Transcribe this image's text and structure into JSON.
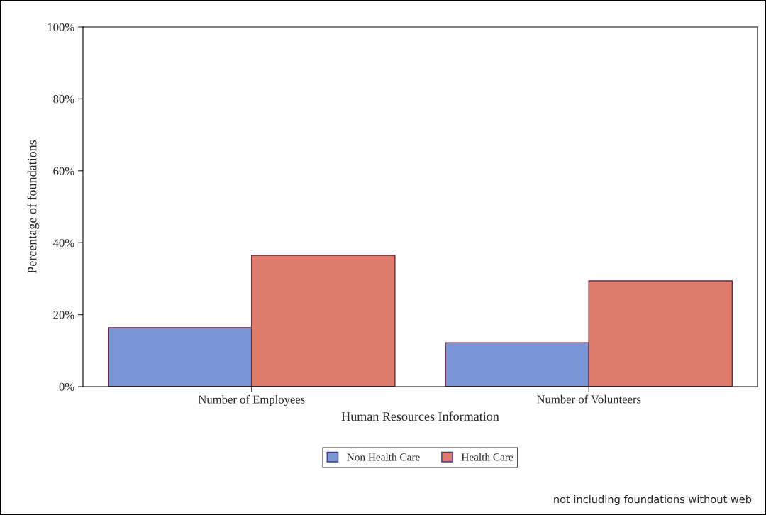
{
  "chart_data": {
    "type": "bar",
    "xlabel": "Human Resources Information",
    "ylabel": "Percentage of foundations",
    "categories": [
      "Number of Employees",
      "Number of Volunteers"
    ],
    "series": [
      {
        "name": "Non Health Care",
        "color": "#7b96d4",
        "values": [
          16.4,
          12.2
        ]
      },
      {
        "name": "Health Care",
        "color": "#df7c6c",
        "values": [
          36.5,
          29.4
        ]
      }
    ],
    "ylim": [
      0,
      100
    ],
    "yticks": [
      {
        "value": 0,
        "label": "0%"
      },
      {
        "value": 20,
        "label": "20%"
      },
      {
        "value": 40,
        "label": "40%"
      },
      {
        "value": 60,
        "label": "60%"
      },
      {
        "value": 80,
        "label": "80%"
      },
      {
        "value": 100,
        "label": "100%"
      }
    ],
    "grid": false,
    "legend": "bottom",
    "annotations": [
      "not including foundations without web"
    ]
  }
}
